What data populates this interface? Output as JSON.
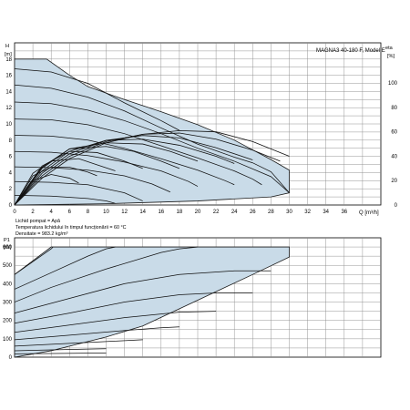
{
  "header": {
    "title": "MAGNA3 40-180 F, Model E"
  },
  "notes": [
    "Lichid pompat = Apă",
    "Temperatura lichidului în timpul funcționării = 60 °C",
    "Densitate = 983.2 kg/m³"
  ],
  "colors": {
    "envelope_fill": "#c9dbe8",
    "curves": "#111111",
    "grid": "#8a8a8a"
  },
  "chart_data": [
    {
      "type": "line",
      "name": "head",
      "ylabel_top": "H",
      "ylabel_unit": "[m]",
      "xlabel": "Q [m³/h]",
      "xlabel_q": "Q",
      "xlabel_unit": "[m³/h]",
      "xlim": [
        0,
        40
      ],
      "ylim": [
        0,
        20
      ],
      "xticks": [
        0,
        2,
        4,
        6,
        8,
        10,
        12,
        14,
        16,
        18,
        20,
        22,
        24,
        26,
        28,
        30,
        32,
        34,
        36
      ],
      "yticks": [
        0,
        2,
        4,
        6,
        8,
        10,
        12,
        14,
        16,
        18
      ],
      "grid": true,
      "envelope": [
        [
          0,
          18
        ],
        [
          3.5,
          18
        ],
        [
          6,
          16
        ],
        [
          8,
          14.6
        ],
        [
          12,
          13
        ],
        [
          16,
          11.5
        ],
        [
          20,
          9.9
        ],
        [
          24,
          8
        ],
        [
          28,
          5.6
        ],
        [
          30,
          4.3
        ],
        [
          30,
          1.5
        ],
        [
          28,
          1
        ],
        [
          20,
          0.5
        ],
        [
          10,
          0.15
        ],
        [
          0,
          0
        ]
      ],
      "series": [
        {
          "values": [
            [
              0,
              16.8
            ],
            [
              4,
              16.4
            ],
            [
              8,
              15
            ],
            [
              12,
              12.6
            ],
            [
              16,
              10.4
            ],
            [
              18,
              9.2
            ]
          ]
        },
        {
          "values": [
            [
              0,
              14.8
            ],
            [
              4,
              14.4
            ],
            [
              8,
              13.3
            ],
            [
              12,
              11.6
            ],
            [
              16,
              9.5
            ],
            [
              20,
              7.5
            ],
            [
              24,
              5.9
            ],
            [
              26,
              5.2
            ],
            [
              28,
              4.1
            ],
            [
              30,
              1.5
            ]
          ]
        },
        {
          "values": [
            [
              0,
              12.7
            ],
            [
              4,
              12.5
            ],
            [
              8,
              11.7
            ],
            [
              12,
              10.4
            ],
            [
              16,
              8.8
            ],
            [
              20,
              7
            ],
            [
              24,
              5.4
            ],
            [
              28,
              3.5
            ],
            [
              30,
              1.5
            ]
          ]
        },
        {
          "values": [
            [
              0,
              10.6
            ],
            [
              4,
              10.5
            ],
            [
              8,
              9.9
            ],
            [
              12,
              8.8
            ],
            [
              16,
              7.3
            ],
            [
              20,
              5.8
            ],
            [
              24,
              4.2
            ],
            [
              26,
              3.2
            ],
            [
              27,
              2.5
            ]
          ]
        },
        {
          "values": [
            [
              0,
              8.6
            ],
            [
              4,
              8.5
            ],
            [
              8,
              8
            ],
            [
              12,
              7
            ],
            [
              16,
              5.7
            ],
            [
              20,
              4.3
            ],
            [
              23,
              3
            ],
            [
              24,
              2.5
            ]
          ]
        },
        {
          "values": [
            [
              0,
              6.6
            ],
            [
              4,
              6.5
            ],
            [
              8,
              6.1
            ],
            [
              12,
              5.3
            ],
            [
              16,
              4.2
            ],
            [
              19,
              2.9
            ],
            [
              20,
              2.3
            ]
          ]
        },
        {
          "values": [
            [
              0,
              4.7
            ],
            [
              4,
              4.6
            ],
            [
              8,
              4.3
            ],
            [
              12,
              3.6
            ],
            [
              15,
              2.6
            ],
            [
              17,
              1.6
            ]
          ]
        },
        {
          "values": [
            [
              0,
              2.9
            ],
            [
              4,
              2.8
            ],
            [
              8,
              2.5
            ],
            [
              10,
              2
            ],
            [
              12,
              1.5
            ],
            [
              14,
              0.5
            ]
          ]
        },
        {
          "values": [
            [
              0,
              1.2
            ],
            [
              4,
              1.1
            ],
            [
              8,
              0.8
            ],
            [
              10,
              0.5
            ],
            [
              11,
              0.2
            ]
          ]
        }
      ]
    },
    {
      "type": "line",
      "name": "efficiency",
      "ylabel_top": "eta",
      "ylabel_unit": "[%]",
      "ylim": [
        0,
        133
      ],
      "yticks": [
        0,
        20,
        40,
        60,
        80,
        100
      ],
      "series": [
        {
          "values": [
            [
              0,
              0
            ],
            [
              3,
              22
            ],
            [
              6,
              38
            ],
            [
              10,
              51
            ],
            [
              14,
              58
            ],
            [
              18,
              61
            ],
            [
              22,
              60
            ],
            [
              26,
              52
            ],
            [
              30,
              40
            ]
          ]
        },
        {
          "values": [
            [
              0,
              0
            ],
            [
              3,
              24
            ],
            [
              6,
              40
            ],
            [
              10,
              52
            ],
            [
              14,
              58
            ],
            [
              18,
              59
            ],
            [
              22,
              54
            ],
            [
              26,
              45
            ],
            [
              29,
              36
            ]
          ]
        },
        {
          "values": [
            [
              0,
              0
            ],
            [
              3,
              26
            ],
            [
              6,
              42
            ],
            [
              10,
              53
            ],
            [
              14,
              57
            ],
            [
              18,
              55
            ],
            [
              22,
              47
            ],
            [
              26,
              37
            ]
          ]
        },
        {
          "values": [
            [
              0,
              0
            ],
            [
              3,
              28
            ],
            [
              6,
              44
            ],
            [
              10,
              53
            ],
            [
              14,
              54
            ],
            [
              18,
              49
            ],
            [
              22,
              40
            ],
            [
              24,
              34
            ]
          ]
        },
        {
          "values": [
            [
              0,
              0
            ],
            [
              3,
              30
            ],
            [
              6,
              46
            ],
            [
              10,
              51
            ],
            [
              14,
              50
            ],
            [
              17,
              44
            ],
            [
              20,
              36
            ]
          ]
        },
        {
          "values": [
            [
              0,
              0
            ],
            [
              3,
              31
            ],
            [
              6,
              46
            ],
            [
              10,
              48
            ],
            [
              13,
              44
            ],
            [
              16,
              36
            ],
            [
              18,
              30
            ]
          ]
        },
        {
          "values": [
            [
              0,
              0
            ],
            [
              3,
              32
            ],
            [
              6,
              44
            ],
            [
              9,
              43
            ],
            [
              12,
              36
            ],
            [
              14,
              30
            ]
          ]
        },
        {
          "values": [
            [
              0,
              0
            ],
            [
              2,
              26
            ],
            [
              4,
              36
            ],
            [
              7,
              38
            ],
            [
              9,
              33
            ],
            [
              11,
              28
            ]
          ]
        },
        {
          "values": [
            [
              0,
              0
            ],
            [
              2,
              24
            ],
            [
              4,
              31
            ],
            [
              6,
              31
            ],
            [
              8,
              27
            ],
            [
              9,
              24
            ]
          ]
        },
        {
          "values": [
            [
              0,
              0
            ],
            [
              2,
              20
            ],
            [
              4,
              25
            ],
            [
              6,
              22
            ],
            [
              7,
              18
            ]
          ]
        }
      ]
    },
    {
      "type": "line",
      "name": "power",
      "ylabel_top": "P1",
      "ylabel_unit": "[W]",
      "xlim": [
        0,
        40
      ],
      "ylim": [
        0,
        650
      ],
      "xticks": [
        0,
        2,
        4,
        6,
        8,
        10,
        12,
        14,
        16,
        18,
        20,
        22,
        24,
        26,
        28,
        30,
        32,
        34,
        36
      ],
      "yticks": [
        0,
        100,
        200,
        300,
        400,
        500,
        600
      ],
      "grid": true,
      "envelope": [
        [
          0,
          0
        ],
        [
          0,
          450
        ],
        [
          4,
          600
        ],
        [
          30,
          600
        ],
        [
          30,
          545
        ],
        [
          26,
          450
        ],
        [
          20,
          310
        ],
        [
          14,
          170
        ],
        [
          10,
          110
        ],
        [
          4,
          35
        ],
        [
          0,
          0
        ]
      ],
      "series": [
        {
          "values": [
            [
              0,
              450
            ],
            [
              2,
              520
            ],
            [
              4,
              590
            ],
            [
              4.2,
              600
            ]
          ]
        },
        {
          "values": [
            [
              0,
              370
            ],
            [
              4,
              460
            ],
            [
              8,
              550
            ],
            [
              10,
              590
            ],
            [
              11,
              600
            ]
          ]
        },
        {
          "values": [
            [
              0,
              300
            ],
            [
              4,
              380
            ],
            [
              10,
              480
            ],
            [
              16,
              570
            ],
            [
              18,
              590
            ],
            [
              20,
              600
            ]
          ]
        },
        {
          "values": [
            [
              0,
              240
            ],
            [
              6,
              320
            ],
            [
              12,
              400
            ],
            [
              18,
              450
            ],
            [
              24,
              470
            ],
            [
              28,
              470
            ]
          ]
        },
        {
          "values": [
            [
              0,
              185
            ],
            [
              6,
              240
            ],
            [
              12,
              300
            ],
            [
              18,
              340
            ],
            [
              22,
              350
            ],
            [
              26,
              350
            ]
          ]
        },
        {
          "values": [
            [
              0,
              135
            ],
            [
              6,
              175
            ],
            [
              12,
              215
            ],
            [
              18,
              245
            ],
            [
              22,
              250
            ]
          ]
        },
        {
          "values": [
            [
              0,
              95
            ],
            [
              6,
              120
            ],
            [
              12,
              145
            ],
            [
              16,
              160
            ],
            [
              18,
              165
            ]
          ]
        },
        {
          "values": [
            [
              0,
              60
            ],
            [
              6,
              75
            ],
            [
              10,
              85
            ],
            [
              14,
              95
            ]
          ]
        },
        {
          "values": [
            [
              0,
              35
            ],
            [
              4,
              40
            ],
            [
              8,
              44
            ],
            [
              10,
              46
            ]
          ]
        },
        {
          "values": [
            [
              0,
              18
            ],
            [
              4,
              20
            ],
            [
              8,
              22
            ],
            [
              10,
              22
            ]
          ]
        }
      ]
    }
  ]
}
